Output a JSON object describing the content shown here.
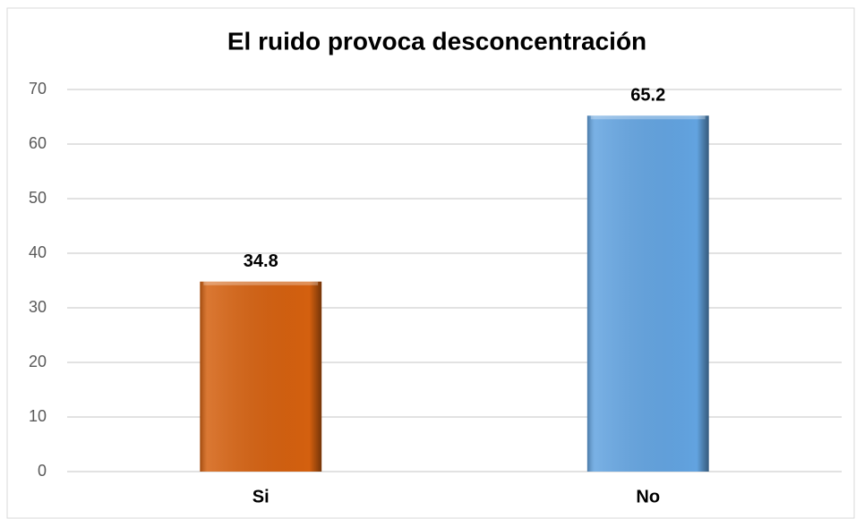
{
  "chart_data": {
    "type": "bar",
    "title": "El ruido provoca desconcentración",
    "categories": [
      "Si",
      "No"
    ],
    "values": [
      34.8,
      65.2
    ],
    "colors": [
      "#d4600f",
      "#62a3e0"
    ],
    "ylim": [
      0,
      70
    ],
    "yticks": [
      0,
      10,
      20,
      30,
      40,
      50,
      60,
      70
    ],
    "grid": true
  }
}
